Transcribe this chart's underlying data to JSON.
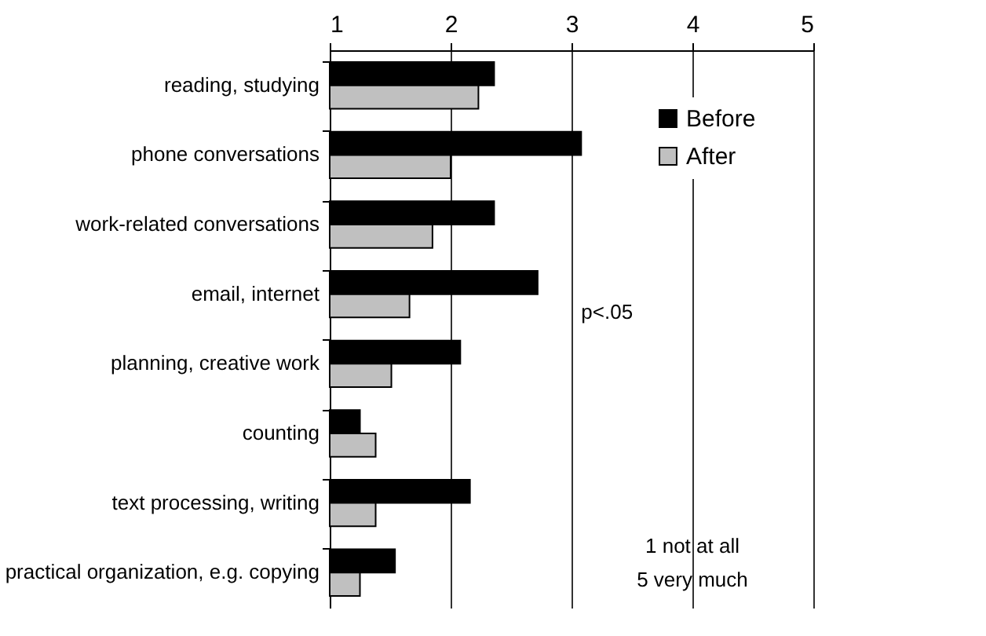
{
  "chart_data": {
    "type": "bar",
    "orientation": "horizontal",
    "categories": [
      "reading, studying",
      "phone conversations",
      "work-related conversations",
      "email, internet",
      "planning, creative work",
      "counting",
      "text processing, writing",
      "practical organization, e.g. copying"
    ],
    "series": [
      {
        "name": "Before",
        "color": "#000000",
        "values": [
          2.36,
          3.08,
          2.36,
          2.72,
          2.08,
          1.25,
          2.16,
          1.54
        ]
      },
      {
        "name": "After",
        "color": "#c0c0c0",
        "values": [
          2.23,
          2.0,
          1.85,
          1.66,
          1.51,
          1.38,
          1.38,
          1.25
        ]
      }
    ],
    "xlim": [
      1,
      5
    ],
    "xticks": [
      1,
      2,
      3,
      4,
      5
    ],
    "grid": "x",
    "legend": "top right",
    "annotations": [
      "p<.05",
      "1 not at all",
      "5 very much"
    ]
  }
}
